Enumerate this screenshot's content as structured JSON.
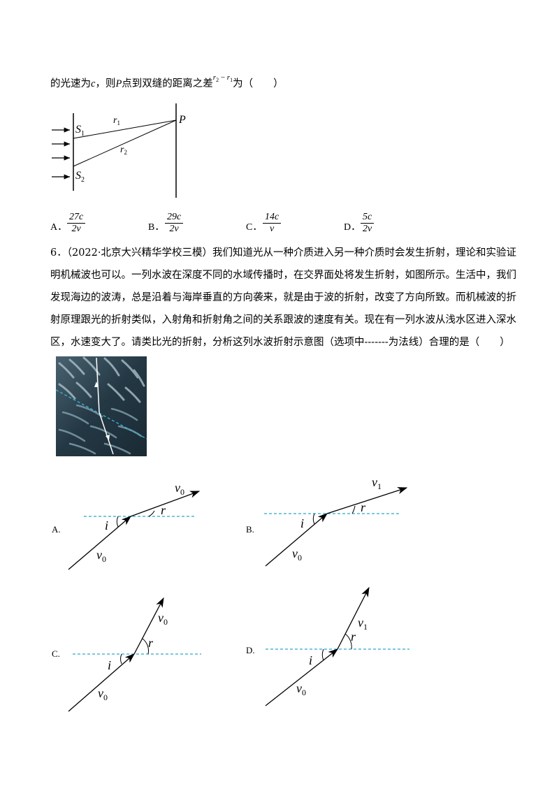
{
  "q5": {
    "text_a": "的光速为",
    "c": "c",
    "text_b": "，则",
    "p": "P",
    "text_c": "点到双缝的距离之差",
    "r2": "r",
    "r2_sub": "2",
    "minus": " − ",
    "r1": "r",
    "r1_sub": "1",
    "text_d": "为（　　）",
    "diagram": {
      "s1": "S",
      "s1_sub": "1",
      "s2": "S",
      "s2_sub": "2",
      "r1": "r",
      "r1_sub": "1",
      "r2": "r",
      "r2_sub": "2",
      "p": "P"
    },
    "options": [
      {
        "letter": "A．",
        "num": "27c",
        "den": "2v"
      },
      {
        "letter": "B．",
        "num": "29c",
        "den": "2v"
      },
      {
        "letter": "C．",
        "num": "14c",
        "den": "v"
      },
      {
        "letter": "D．",
        "num": "5c",
        "den": "2v"
      }
    ]
  },
  "q6": {
    "lines": [
      "6．（2022·北京大兴精华学校三模）我们知道光从一种介质进入另一种介质时会发生折射，理论和实验证",
      "明机械波也可以。一列水波在深度不同的水域传播时，在交界面处将发生折射，如图所示。生活中，我们",
      "发现海边的波涛，总是沿着与海岸垂直的方向袭来，就是由于波的折射，改变了方向所致。而机械波的折",
      "射原理跟光的折射类似，入射角和折射角之间的关系跟波的速度有关。现在有一列水波从浅水区进入深水",
      "区，水速变大了。请类比光的折射，分析这列水波折射示意图（选项中-------为法线）合理的是（　　）"
    ],
    "options": [
      {
        "letter": "A.",
        "in_v": "v",
        "in_sub": "0",
        "out_v": "v",
        "out_sub": "0",
        "i": "i",
        "r": "r"
      },
      {
        "letter": "B.",
        "in_v": "v",
        "in_sub": "0",
        "out_v": "v",
        "out_sub": "1",
        "i": "i",
        "r": "r"
      },
      {
        "letter": "C.",
        "in_v": "v",
        "in_sub": "0",
        "out_v": "v",
        "out_sub": "0",
        "i": "i",
        "r": "r"
      },
      {
        "letter": "D.",
        "in_v": "v",
        "in_sub": "0",
        "out_v": "v",
        "out_sub": "1",
        "i": "i",
        "r": "r"
      }
    ]
  },
  "colors": {
    "normal_line": "#2aa7c9",
    "ink": "#000000",
    "photo_dark": "#1c2e38"
  }
}
